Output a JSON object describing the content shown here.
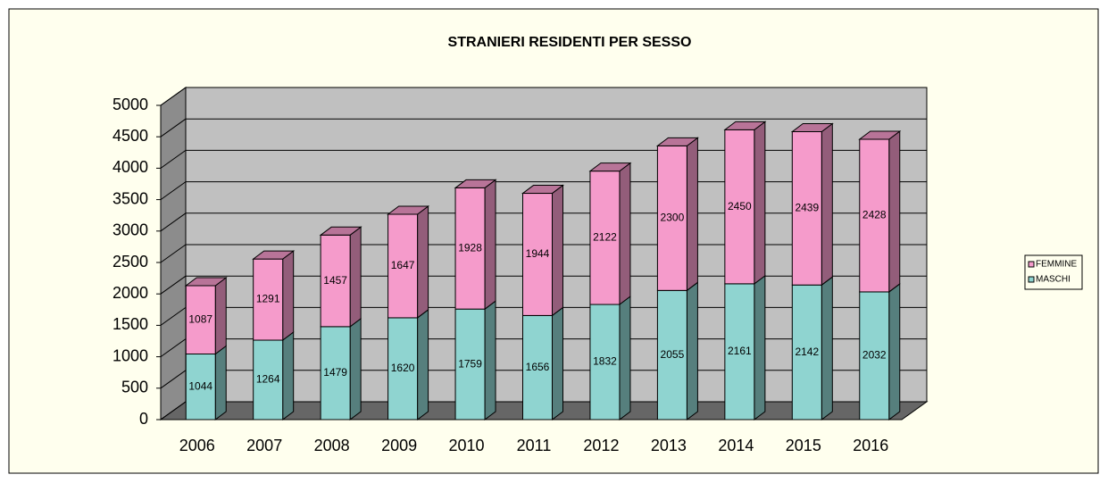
{
  "chart_data": {
    "type": "bar",
    "stacked": true,
    "three_d": true,
    "title": "STRANIERI RESIDENTI PER SESSO",
    "categories": [
      "2006",
      "2007",
      "2008",
      "2009",
      "2010",
      "2011",
      "2012",
      "2013",
      "2014",
      "2015",
      "2016"
    ],
    "series": [
      {
        "name": "MASCHI",
        "color": "#8fd4d0",
        "values": [
          1044,
          1264,
          1479,
          1620,
          1759,
          1656,
          1832,
          2055,
          2161,
          2142,
          2032
        ]
      },
      {
        "name": "FEMMINE",
        "color": "#f59bcb",
        "values": [
          1087,
          1291,
          1457,
          1647,
          1928,
          1944,
          2122,
          2300,
          2450,
          2439,
          2428
        ]
      }
    ],
    "ylim": [
      0,
      5000
    ],
    "yticks": [
      0,
      500,
      1000,
      1500,
      2000,
      2500,
      3000,
      3500,
      4000,
      4500,
      5000
    ],
    "grid": true,
    "legend": "right"
  }
}
